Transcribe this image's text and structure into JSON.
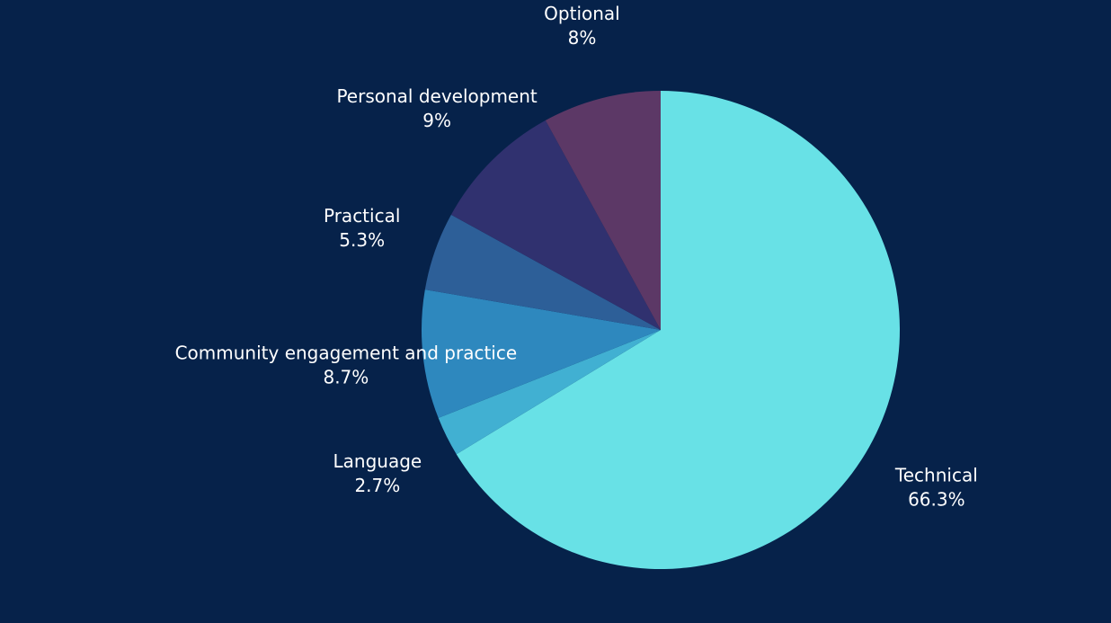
{
  "chart_data": {
    "type": "pie",
    "title": "",
    "start_angle_deg": 0,
    "direction": "clockwise",
    "slices": [
      {
        "label": "Technical",
        "value": 66.3,
        "display": "66.3%",
        "color": "#68e1e6"
      },
      {
        "label": "Language",
        "value": 2.7,
        "display": "2.7%",
        "color": "#41b0d2"
      },
      {
        "label": "Community engagement and practice",
        "value": 8.7,
        "display": "8.7%",
        "color": "#2e88be"
      },
      {
        "label": "Practical",
        "value": 5.3,
        "display": "5.3%",
        "color": "#2d5f98"
      },
      {
        "label": "Personal development",
        "value": 9,
        "display": "9%",
        "color": "#30316f"
      },
      {
        "label": "Optional",
        "value": 8,
        "display": "8%",
        "color": "#5c3866"
      }
    ]
  },
  "colors": {
    "background": "#06224a",
    "label_text": "#ffffff"
  }
}
